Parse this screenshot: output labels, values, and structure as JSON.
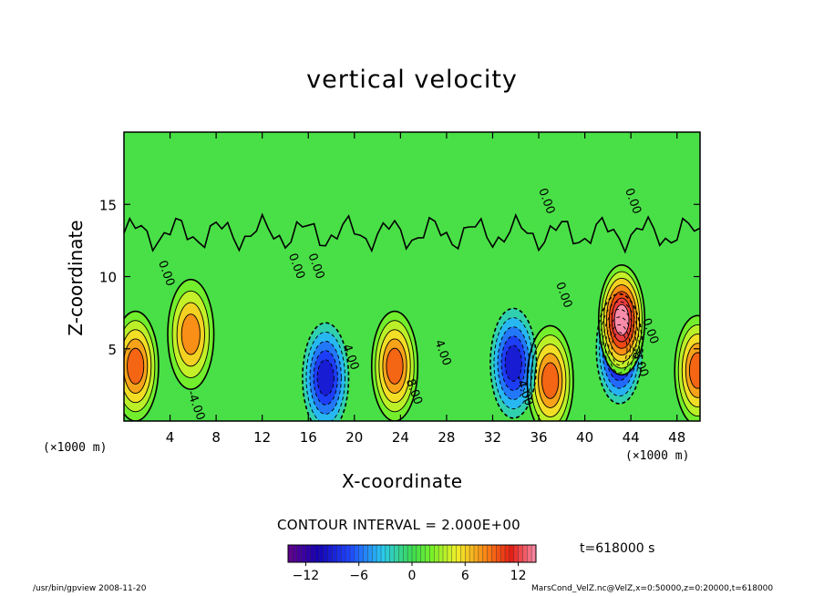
{
  "chart_data": {
    "type": "heatmap",
    "title": "vertical velocity",
    "xlabel": "X-coordinate",
    "ylabel": "Z-coordinate",
    "x_unit": "(×1000 m)",
    "xlim": [
      0,
      50
    ],
    "ylim": [
      0,
      20
    ],
    "x_ticks": [
      4,
      8,
      12,
      16,
      20,
      24,
      28,
      32,
      36,
      40,
      44,
      48
    ],
    "y_ticks": [
      5,
      10,
      15
    ],
    "contour_interval_label": "CONTOUR INTERVAL = 2.000E+00",
    "colorbar": {
      "range": [
        -14,
        14
      ],
      "ticks": [
        -12,
        -6,
        0,
        6,
        12
      ]
    },
    "contour_labels": [
      {
        "text": "0.00",
        "x": 3.0,
        "y": 11.0
      },
      {
        "text": "0.00",
        "x": 14.3,
        "y": 11.5
      },
      {
        "text": "0.00",
        "x": 16.0,
        "y": 11.5
      },
      {
        "text": "0.00",
        "x": 37.5,
        "y": 9.5
      },
      {
        "text": "0.00",
        "x": 36.0,
        "y": 16.0
      },
      {
        "text": "0.00",
        "x": 43.5,
        "y": 16.0
      },
      {
        "text": "0.00",
        "x": 45.0,
        "y": 7.0
      },
      {
        "text": "4.00",
        "x": 19.0,
        "y": 5.2
      },
      {
        "text": "4.00",
        "x": 27.0,
        "y": 5.5
      },
      {
        "text": "8.00",
        "x": 24.5,
        "y": 2.8
      },
      {
        "text": "-8.00",
        "x": 44.0,
        "y": 5.0
      },
      {
        "text": "-4.00",
        "x": 34.0,
        "y": 3.0
      },
      {
        "text": "-4.00",
        "x": 5.5,
        "y": 2.0
      }
    ],
    "features": [
      {
        "x": 5.8,
        "y": 6.0,
        "w": 8,
        "kind": "updraft"
      },
      {
        "x": 1.0,
        "y": 3.8,
        "w": 9,
        "kind": "updraft"
      },
      {
        "x": 23.5,
        "y": 3.8,
        "w": 9,
        "kind": "updraft"
      },
      {
        "x": 37.0,
        "y": 2.8,
        "w": 9,
        "kind": "updraft"
      },
      {
        "x": 49.8,
        "y": 3.5,
        "w": 9,
        "kind": "updraft"
      },
      {
        "x": 17.5,
        "y": 3.0,
        "w": -9,
        "kind": "downdraft"
      },
      {
        "x": 33.8,
        "y": 4.0,
        "w": -9,
        "kind": "downdraft"
      },
      {
        "x": 43.0,
        "y": 5.0,
        "w": -12,
        "kind": "downdraft"
      },
      {
        "x": 43.2,
        "y": 7.0,
        "w": 14,
        "kind": "updraft"
      }
    ]
  },
  "time_label": "t=618000 s",
  "footer_left": "/usr/bin/gpview   2008-11-20",
  "footer_right": "MarsCond_VelZ.nc@VelZ,x=0:50000,z=0:20000,t=618000"
}
